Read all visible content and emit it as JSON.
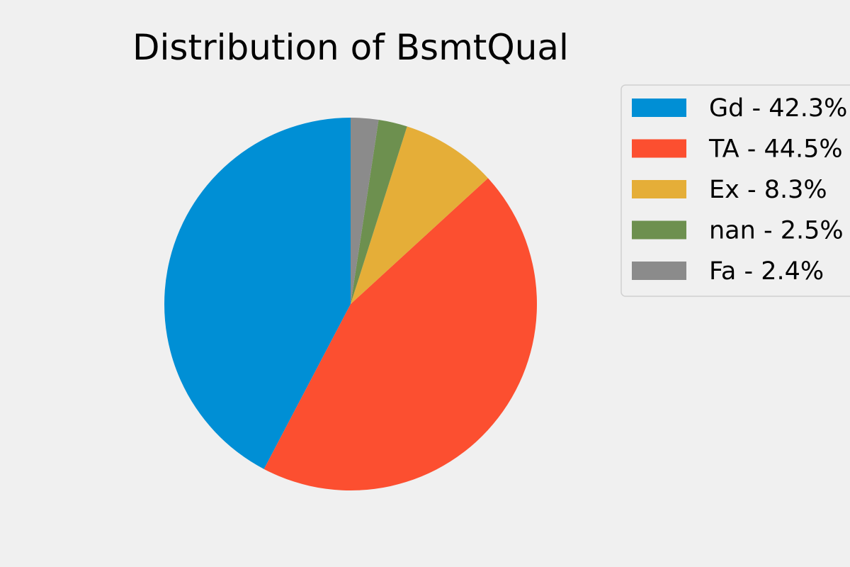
{
  "chart_data": {
    "type": "pie",
    "title": "Distribution of BsmtQual",
    "slices": [
      {
        "label": "Gd - 42.3%",
        "category": "Gd",
        "value": 42.3,
        "color": "#008fd5"
      },
      {
        "label": "TA - 44.5%",
        "category": "TA",
        "value": 44.5,
        "color": "#fc4f30"
      },
      {
        "label": "Ex - 8.3%",
        "category": "Ex",
        "value": 8.3,
        "color": "#e5ae38"
      },
      {
        "label": "nan - 2.5%",
        "category": "nan",
        "value": 2.5,
        "color": "#6d904f"
      },
      {
        "label": "Fa - 2.4%",
        "category": "Fa",
        "value": 2.4,
        "color": "#8b8b8b"
      }
    ],
    "start_angle_deg": 90,
    "direction": "counterclockwise",
    "legend_position": "upper-right"
  }
}
